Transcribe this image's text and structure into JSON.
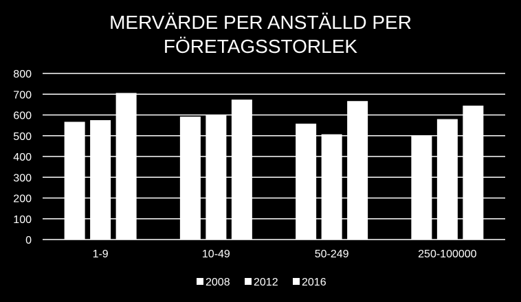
{
  "chart_data": {
    "type": "bar",
    "title_lines": [
      "MERVÄRDE  PER ANSTÄLLD PER",
      "FÖRETAGSSTORLEK"
    ],
    "categories": [
      "1-9",
      "10-49",
      "50-249",
      "250-100000"
    ],
    "series": [
      {
        "name": "2008",
        "values": [
          567,
          592,
          558,
          502
        ]
      },
      {
        "name": "2012",
        "values": [
          575,
          600,
          507,
          580
        ]
      },
      {
        "name": "2016",
        "values": [
          706,
          674,
          667,
          645
        ]
      }
    ],
    "y_ticks": [
      "0",
      "100",
      "200",
      "300",
      "400",
      "500",
      "600",
      "700",
      "800"
    ],
    "ylim": [
      0,
      800
    ],
    "grid": true,
    "legend_position": "bottom",
    "colors": {
      "background": "#000000",
      "bars": "#ffffff",
      "grid": "#ffffff",
      "text": "#ffffff"
    }
  }
}
